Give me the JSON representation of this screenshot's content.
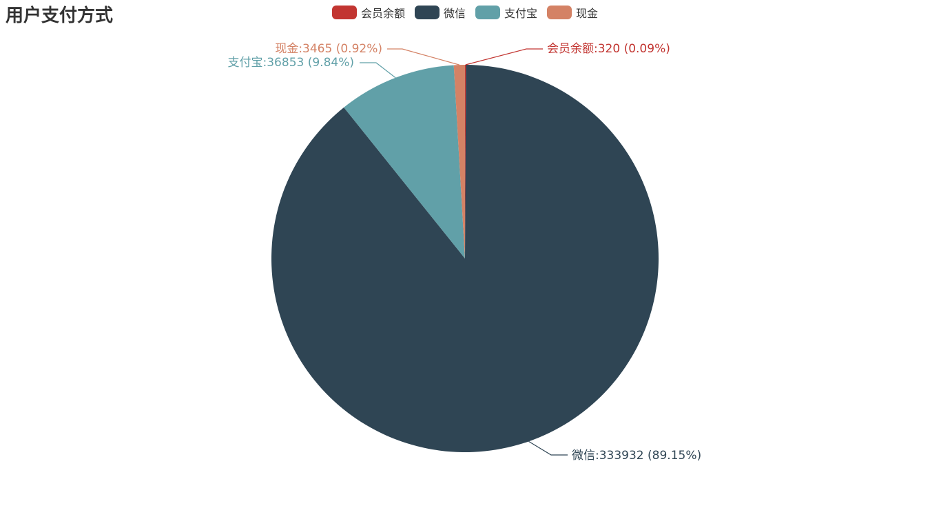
{
  "chart_data": {
    "type": "pie",
    "title": "用户支付方式",
    "legend_placement": "top",
    "slices": [
      {
        "name": "会员余额",
        "value": 320,
        "percent": "0.09%",
        "color": "#c23531",
        "label": "会员余额:320 (0.09%)"
      },
      {
        "name": "微信",
        "value": 333932,
        "percent": "89.15%",
        "color": "#2f4554",
        "label": "微信:333932 (89.15%)"
      },
      {
        "name": "支付宝",
        "value": 36853,
        "percent": "9.84%",
        "color": "#61a0a8",
        "label": "支付宝:36853 (9.84%)"
      },
      {
        "name": "现金",
        "value": 3465,
        "percent": "0.92%",
        "color": "#d48265",
        "label": "现金:3465 (0.92%)"
      }
    ]
  }
}
